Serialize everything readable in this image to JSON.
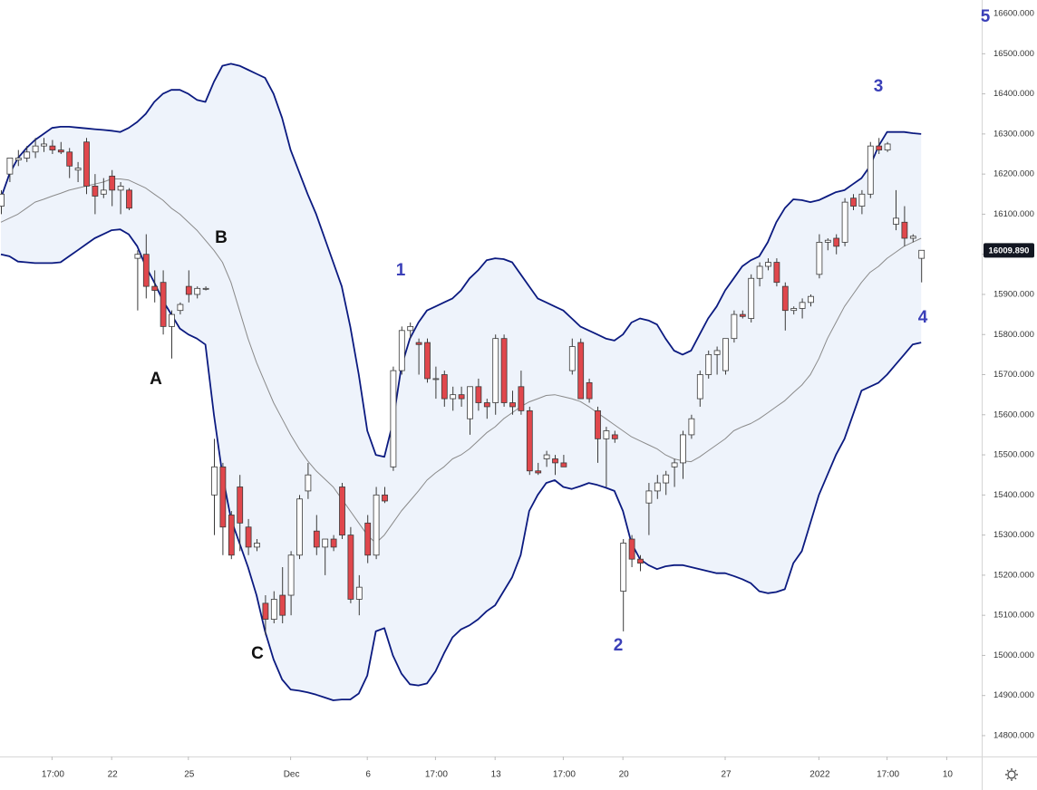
{
  "chart_data": {
    "type": "candlestick",
    "categories": [
      null,
      null,
      null,
      null,
      null,
      null,
      "17:00",
      null,
      null,
      null,
      null,
      null,
      null,
      "22",
      null,
      null,
      null,
      null,
      null,
      null,
      null,
      null,
      "25",
      null,
      null,
      null,
      null,
      null,
      null,
      null,
      null,
      null,
      null,
      null,
      "Dec",
      null,
      null,
      null,
      null,
      null,
      null,
      null,
      null,
      "6",
      null,
      null,
      null,
      null,
      null,
      null,
      null,
      "17:00",
      null,
      null,
      null,
      null,
      null,
      null,
      "13",
      null,
      null,
      null,
      null,
      null,
      null,
      null,
      "17:00",
      null,
      null,
      null,
      null,
      null,
      null,
      "20",
      null,
      null,
      null,
      null,
      null,
      null,
      null,
      null,
      null,
      null,
      null,
      "27",
      null,
      null,
      null,
      null,
      null,
      null,
      null,
      null,
      null,
      null,
      "2022",
      null,
      null,
      null,
      null,
      null,
      null,
      null,
      "17:00",
      null,
      null,
      null,
      null,
      null,
      null,
      "10"
    ],
    "open": [
      16120,
      16200,
      16235,
      16240,
      16255,
      16270,
      16270,
      16260,
      16255,
      16210,
      16280,
      16170,
      16150,
      16195,
      16160,
      16160,
      15990,
      16000,
      15920,
      15930,
      15820,
      15860,
      15920,
      15900,
      15915,
      15400,
      15470,
      15350,
      15420,
      15320,
      15270,
      15130,
      15090,
      15150,
      15150,
      15250,
      15410,
      15310,
      15270,
      15290,
      15420,
      15300,
      15140,
      15330,
      15250,
      15400,
      15470,
      15710,
      15810,
      15780,
      15780,
      15690,
      15700,
      15640,
      15650,
      15590,
      15670,
      15630,
      15630,
      15790,
      15630,
      15670,
      15610,
      15460,
      15490,
      15490,
      15480,
      15710,
      15780,
      15680,
      15610,
      15540,
      15550,
      15160,
      15290,
      15240,
      15380,
      15410,
      15430,
      15470,
      15480,
      15550,
      15640,
      15700,
      15750,
      15710,
      15790,
      15850,
      15840,
      15940,
      15970,
      15980,
      15920,
      15860,
      15865,
      15880,
      15950,
      16030,
      16040,
      16030,
      16140,
      16120,
      16150,
      16270,
      16260,
      16075,
      16080,
      16040,
      15990,
      null,
      null,
      null
    ],
    "high": [
      16160,
      16240,
      16260,
      16270,
      16290,
      16290,
      16285,
      16280,
      16265,
      16230,
      16290,
      16200,
      16190,
      16210,
      16180,
      16165,
      16010,
      16050,
      15960,
      15960,
      15860,
      15880,
      15960,
      15920,
      15920,
      15540,
      15480,
      15360,
      15450,
      15340,
      15290,
      15150,
      15160,
      15220,
      15260,
      15400,
      15480,
      15350,
      15290,
      15300,
      15430,
      15320,
      15200,
      15350,
      15420,
      15420,
      15720,
      15820,
      15830,
      15790,
      15790,
      15720,
      15710,
      15670,
      15670,
      15670,
      15690,
      15640,
      15800,
      15800,
      15660,
      15710,
      15620,
      15480,
      15510,
      15500,
      15500,
      15790,
      15790,
      15690,
      15620,
      15570,
      15560,
      15290,
      15300,
      15250,
      15430,
      15450,
      15460,
      15490,
      15560,
      15600,
      15710,
      15760,
      15770,
      15790,
      15860,
      15860,
      15950,
      15980,
      15990,
      15990,
      15930,
      15870,
      15890,
      15900,
      16050,
      16040,
      16050,
      16140,
      16150,
      16160,
      16280,
      16290,
      16280,
      16160,
      16120,
      16050,
      16000,
      null,
      null,
      null
    ],
    "low": [
      16100,
      16180,
      16220,
      16230,
      16240,
      16255,
      16250,
      16250,
      16190,
      16180,
      16150,
      16100,
      16140,
      16120,
      16100,
      16110,
      15860,
      15890,
      15880,
      15800,
      15740,
      15850,
      15880,
      15890,
      15910,
      15300,
      15250,
      15240,
      15260,
      15250,
      15260,
      15050,
      15080,
      15080,
      15100,
      15240,
      15390,
      15250,
      15200,
      15260,
      15290,
      15130,
      15100,
      15230,
      15240,
      15380,
      15460,
      15700,
      15790,
      15700,
      15680,
      15640,
      15620,
      15610,
      15620,
      15550,
      15610,
      15590,
      15600,
      15620,
      15600,
      15600,
      15450,
      15450,
      15470,
      15450,
      15470,
      15700,
      15640,
      15630,
      15480,
      15420,
      15530,
      15060,
      15220,
      15210,
      15300,
      15390,
      15400,
      15420,
      15440,
      15540,
      15620,
      15690,
      15700,
      15700,
      15780,
      15840,
      15830,
      15920,
      15960,
      15920,
      15810,
      15850,
      15840,
      15870,
      15940,
      16010,
      16000,
      16020,
      16110,
      16100,
      16140,
      16250,
      16255,
      16060,
      16020,
      16030,
      15930,
      null,
      null,
      null
    ],
    "close": [
      16150,
      16240,
      16240,
      16255,
      16270,
      16275,
      16260,
      16255,
      16220,
      16215,
      16170,
      16145,
      16160,
      16160,
      16170,
      16115,
      16000,
      15920,
      15910,
      15820,
      15850,
      15875,
      15900,
      15915,
      15915,
      15470,
      15320,
      15250,
      15330,
      15270,
      15280,
      15090,
      15140,
      15100,
      15250,
      15390,
      15450,
      15270,
      15290,
      15270,
      15300,
      15140,
      15170,
      15250,
      15400,
      15385,
      15710,
      15810,
      15820,
      15775,
      15690,
      15690,
      15640,
      15650,
      15640,
      15670,
      15630,
      15620,
      15790,
      15630,
      15620,
      15610,
      15460,
      15455,
      15500,
      15480,
      15470,
      15770,
      15640,
      15640,
      15540,
      15560,
      15540,
      15280,
      15240,
      15230,
      15410,
      15430,
      15450,
      15480,
      15550,
      15590,
      15700,
      15750,
      15760,
      15790,
      15850,
      15845,
      15940,
      15970,
      15980,
      15930,
      15860,
      15865,
      15880,
      15895,
      16030,
      16035,
      16020,
      16130,
      16120,
      16150,
      16270,
      16260,
      16275,
      16090,
      16040,
      16045,
      16010,
      null,
      null,
      null
    ],
    "up_color": "#ffffff",
    "down_color": "#e0474c",
    "bands": {
      "color": "#0b1a80",
      "fill": "#eef3fb",
      "middle_color": "#8a8a8a",
      "upper": [
        16140,
        16200,
        16240,
        16265,
        16285,
        16300,
        16315,
        16318,
        16318,
        16316,
        16314,
        16312,
        16310,
        16308,
        16305,
        16315,
        16330,
        16350,
        16380,
        16400,
        16410,
        16410,
        16400,
        16385,
        16380,
        16430,
        16470,
        16475,
        16470,
        16460,
        16450,
        16440,
        16400,
        16340,
        16260,
        16205,
        16150,
        16100,
        16040,
        15980,
        15920,
        15820,
        15700,
        15560,
        15500,
        15495,
        15580,
        15720,
        15790,
        15830,
        15860,
        15870,
        15880,
        15890,
        15910,
        15940,
        15960,
        15985,
        15990,
        15988,
        15980,
        15950,
        15920,
        15890,
        15880,
        15870,
        15860,
        15840,
        15820,
        15810,
        15800,
        15790,
        15785,
        15800,
        15830,
        15840,
        15835,
        15825,
        15790,
        15760,
        15750,
        15760,
        15800,
        15840,
        15870,
        15910,
        15940,
        15970,
        15985,
        15995,
        16030,
        16080,
        16115,
        16137,
        16135,
        16130,
        16135,
        16145,
        16155,
        16160,
        16175,
        16190,
        16220,
        16270,
        16305,
        16305,
        16305,
        16302,
        16300,
        null,
        null,
        null
      ],
      "middle": [
        16080,
        16090,
        16100,
        16115,
        16130,
        16137,
        16145,
        16152,
        16160,
        16165,
        16170,
        16175,
        16180,
        16188,
        16188,
        16185,
        16175,
        16165,
        16150,
        16135,
        16115,
        16100,
        16080,
        16060,
        16035,
        16010,
        15980,
        15930,
        15860,
        15790,
        15730,
        15680,
        15630,
        15590,
        15550,
        15515,
        15485,
        15460,
        15440,
        15420,
        15390,
        15360,
        15330,
        15300,
        15280,
        15300,
        15330,
        15360,
        15385,
        15410,
        15437,
        15455,
        15470,
        15490,
        15500,
        15515,
        15535,
        15555,
        15570,
        15590,
        15605,
        15620,
        15632,
        15640,
        15648,
        15650,
        15645,
        15640,
        15633,
        15620,
        15605,
        15590,
        15575,
        15560,
        15545,
        15535,
        15525,
        15515,
        15500,
        15490,
        15485,
        15483,
        15495,
        15510,
        15525,
        15540,
        15560,
        15570,
        15578,
        15590,
        15605,
        15620,
        15635,
        15655,
        15674,
        15700,
        15740,
        15790,
        15830,
        15870,
        15900,
        15930,
        15955,
        15970,
        15990,
        16005,
        16020,
        16030,
        16040,
        null,
        null,
        null
      ],
      "lower": [
        16000,
        15995,
        15982,
        15980,
        15978,
        15978,
        15978,
        15980,
        15995,
        16010,
        16025,
        16040,
        16050,
        16060,
        16062,
        16050,
        16020,
        15970,
        15930,
        15885,
        15850,
        15815,
        15800,
        15790,
        15775,
        15600,
        15450,
        15340,
        15280,
        15220,
        15150,
        15060,
        14990,
        14940,
        14915,
        14912,
        14908,
        14902,
        14895,
        14888,
        14890,
        14890,
        14905,
        14950,
        15060,
        15068,
        15000,
        14955,
        14928,
        14925,
        14930,
        14960,
        15005,
        15045,
        15065,
        15075,
        15090,
        15110,
        15125,
        15160,
        15195,
        15250,
        15360,
        15400,
        15430,
        15437,
        15420,
        15415,
        15422,
        15430,
        15425,
        15418,
        15410,
        15360,
        15280,
        15240,
        15225,
        15215,
        15222,
        15225,
        15225,
        15220,
        15215,
        15210,
        15205,
        15205,
        15198,
        15190,
        15180,
        15160,
        15155,
        15158,
        15165,
        15230,
        15260,
        15330,
        15400,
        15450,
        15500,
        15540,
        15600,
        15660,
        15670,
        15680,
        15700,
        15725,
        15750,
        15775,
        15780,
        null,
        null,
        null
      ]
    },
    "ylim": [
      14748,
      16634
    ],
    "yticks": [
      {
        "value": 14800,
        "label": "14800.000"
      },
      {
        "value": 14900,
        "label": "14900.000"
      },
      {
        "value": 15000,
        "label": "15000.000"
      },
      {
        "value": 15100,
        "label": "15100.000"
      },
      {
        "value": 15200,
        "label": "15200.000"
      },
      {
        "value": 15300,
        "label": "15300.000"
      },
      {
        "value": 15400,
        "label": "15400.000"
      },
      {
        "value": 15500,
        "label": "15500.000"
      },
      {
        "value": 15600,
        "label": "15600.000"
      },
      {
        "value": 15700,
        "label": "15700.000"
      },
      {
        "value": 15800,
        "label": "15800.000"
      },
      {
        "value": 15900,
        "label": "15900.000"
      },
      {
        "value": 16000,
        "label": "16000.000"
      },
      {
        "value": 16100,
        "label": "16100.000"
      },
      {
        "value": 16200,
        "label": "16200.000"
      },
      {
        "value": 16300,
        "label": "16300.000"
      },
      {
        "value": 16400,
        "label": "16400.000"
      },
      {
        "value": 16500,
        "label": "16500.000"
      },
      {
        "value": 16600,
        "label": "16600.000"
      }
    ],
    "last_price": {
      "value": 16009.89,
      "label": "16009.890"
    },
    "annotations": [
      {
        "text": "B",
        "color": "#111111"
      },
      {
        "text": "A",
        "color": "#111111"
      },
      {
        "text": "C",
        "color": "#111111"
      },
      {
        "text": "1",
        "color": "#3a3fb8"
      },
      {
        "text": "2",
        "color": "#3a3fb8"
      },
      {
        "text": "3",
        "color": "#3a3fb8"
      },
      {
        "text": "4",
        "color": "#3a3fb8"
      },
      {
        "text": "5",
        "color": "#3a3fb8"
      }
    ]
  }
}
